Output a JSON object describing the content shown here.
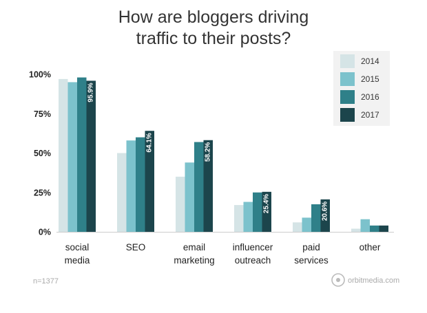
{
  "chart_data": {
    "type": "bar",
    "title_lines": [
      "How are bloggers driving",
      "traffic to their posts?"
    ],
    "categories": [
      [
        "social",
        "media"
      ],
      [
        "SEO"
      ],
      [
        "email",
        "marketing"
      ],
      [
        "influencer",
        "outreach"
      ],
      [
        "paid",
        "services"
      ],
      [
        "other"
      ]
    ],
    "y_ticks": [
      "0%",
      "25%",
      "50%",
      "75%",
      "100%"
    ],
    "ylim": [
      0,
      100
    ],
    "grid": false,
    "legend_position": "top-right",
    "series": [
      {
        "name": "2014",
        "color": "#d5e4e6",
        "values": [
          97,
          50,
          35,
          17,
          6,
          2
        ]
      },
      {
        "name": "2015",
        "color": "#7cc2cc",
        "values": [
          95,
          58,
          44,
          19,
          9,
          8
        ]
      },
      {
        "name": "2016",
        "color": "#2f8089",
        "values": [
          98,
          60,
          57,
          25,
          17.5,
          4
        ]
      },
      {
        "name": "2017",
        "color": "#1c454c",
        "values": [
          95.9,
          64.1,
          58.2,
          25.4,
          20.6,
          4
        ]
      }
    ],
    "data_labels": [
      "95.9%",
      "64.1%",
      "58.2%",
      "25.4%",
      "20.6%",
      ""
    ],
    "footnote": "n=1377",
    "source": "orbitmedia.com"
  }
}
